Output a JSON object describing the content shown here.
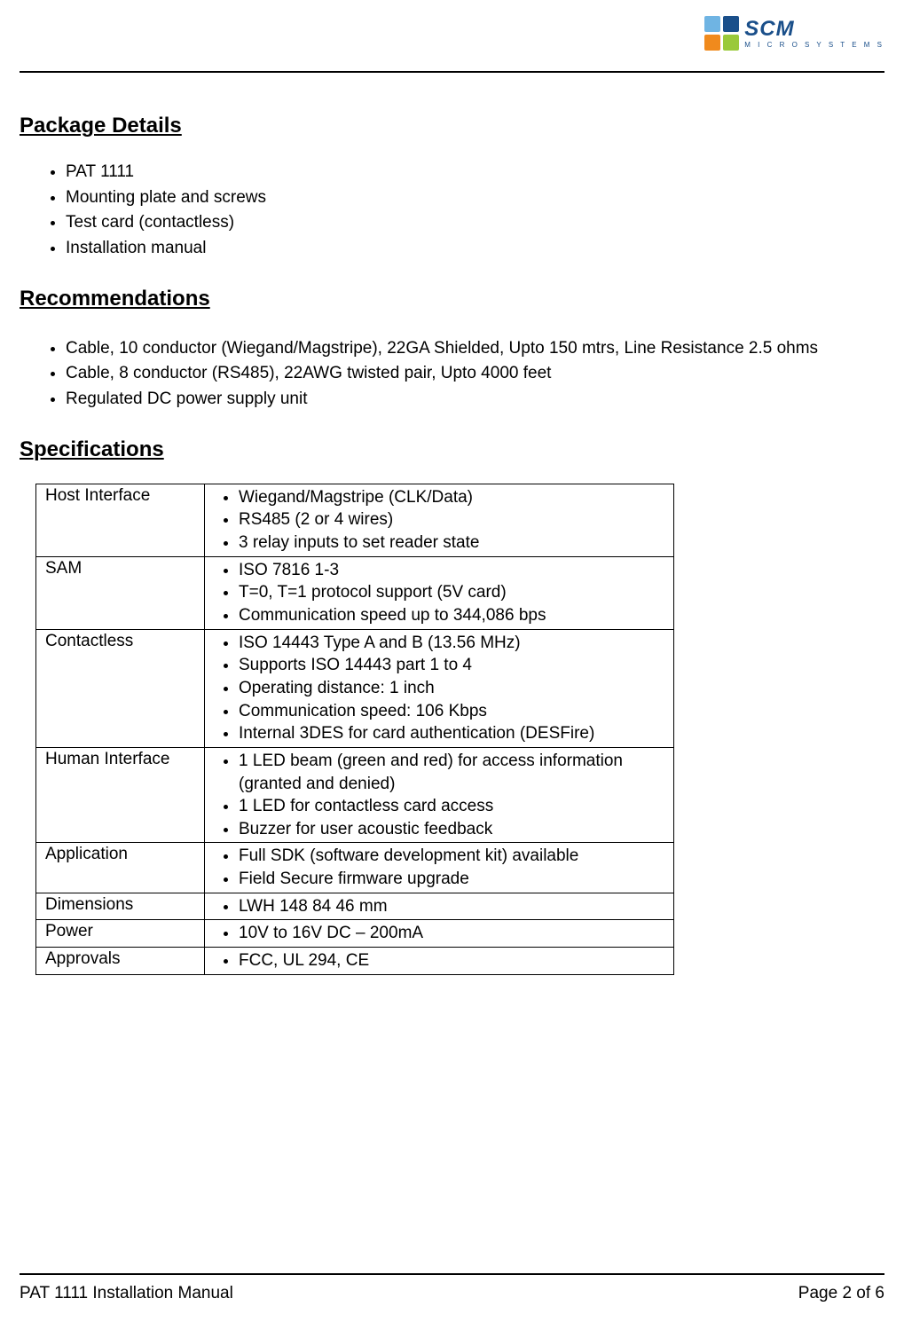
{
  "logo": {
    "main": "SCM",
    "sub": "M I C R O S Y S T E M S",
    "square_colors": [
      "#6fb4e3",
      "#1a4f8a",
      "#f08a1d",
      "#9ac93a"
    ]
  },
  "sections": {
    "package": {
      "title": "Package Details",
      "items": [
        "PAT 1111",
        "Mounting plate and screws",
        "Test card (contactless)",
        "Installation manual"
      ]
    },
    "recommendations": {
      "title": "Recommendations",
      "items": [
        "Cable, 10 conductor (Wiegand/Magstripe), 22GA Shielded, Upto 150 mtrs, Line Resistance 2.5 ohms",
        "Cable, 8 conductor (RS485), 22AWG twisted pair, Upto 4000 feet",
        "Regulated DC power supply unit"
      ]
    },
    "specifications": {
      "title": "Specifications",
      "rows": [
        {
          "label": "Host Interface",
          "items": [
            "Wiegand/Magstripe (CLK/Data)",
            "RS485 (2 or 4 wires)",
            "3 relay inputs to set reader state"
          ]
        },
        {
          "label": "SAM",
          "items": [
            "ISO 7816 1-3",
            "T=0, T=1 protocol support (5V card)",
            "Communication speed up to 344,086 bps"
          ]
        },
        {
          "label": "Contactless",
          "items": [
            "ISO 14443 Type A and B (13.56 MHz)",
            "Supports ISO 14443 part 1 to 4",
            "Operating distance: 1 inch",
            "Communication speed: 106 Kbps",
            "Internal 3DES for card authentication (DESFire)"
          ]
        },
        {
          "label": "Human Interface",
          "items": [
            "1 LED beam (green and red) for access information (granted and denied)",
            "1 LED for contactless card access",
            "Buzzer for user acoustic feedback"
          ]
        },
        {
          "label": "Application",
          "items": [
            "Full SDK (software development kit) available",
            "Field Secure firmware upgrade"
          ]
        },
        {
          "label": "Dimensions",
          "items": [
            "LWH 148 84 46 mm"
          ]
        },
        {
          "label": "Power",
          "items": [
            "10V to 16V DC – 200mA"
          ]
        },
        {
          "label": "Approvals",
          "items": [
            "FCC, UL 294, CE"
          ]
        }
      ]
    }
  },
  "footer": {
    "left": "PAT 1111 Installation Manual",
    "right": "Page 2 of 6"
  }
}
